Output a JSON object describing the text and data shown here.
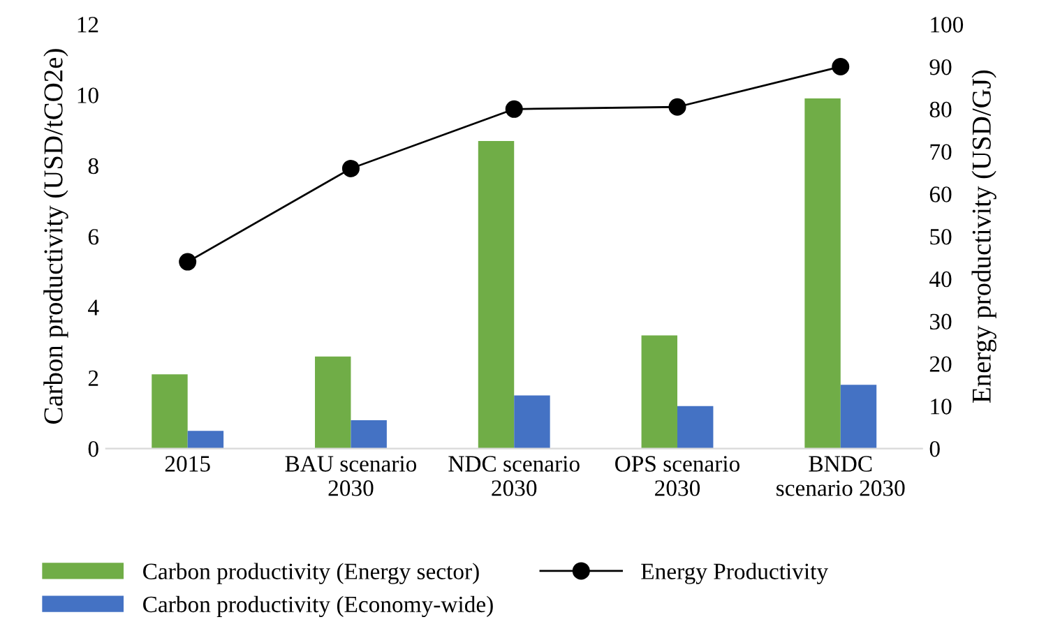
{
  "chart_data": {
    "type": "bar",
    "ylabel": "Carbon productivity (USD/tCO2e)",
    "y2label": "Energy productivity (USD/GJ)",
    "categories": [
      "2015",
      "BAU scenario\n2030",
      "NDC scenario\n2030",
      "OPS scenario\n2030",
      "BNDC\nscenario 2030"
    ],
    "series": [
      {
        "name": "Carbon productivity (Energy sector)",
        "color": "#70ad47",
        "values": [
          2.1,
          2.6,
          8.7,
          3.2,
          9.9
        ]
      },
      {
        "name": "Carbon productivity (Economy-wide)",
        "color": "#4472c4",
        "values": [
          0.5,
          0.8,
          1.5,
          1.2,
          1.8
        ]
      },
      {
        "name": "Energy Productivity",
        "type": "line",
        "axis": "y2",
        "color": "#000000",
        "marker": "circle",
        "values": [
          44,
          66,
          80,
          80.5,
          90
        ]
      }
    ],
    "ylim": [
      0,
      12
    ],
    "yticks": [
      0,
      2,
      4,
      6,
      8,
      10,
      12
    ],
    "y2lim": [
      0,
      100
    ],
    "y2ticks": [
      0,
      10,
      20,
      30,
      40,
      50,
      60,
      70,
      80,
      90,
      100
    ],
    "legend": "bottom",
    "grid": false
  }
}
